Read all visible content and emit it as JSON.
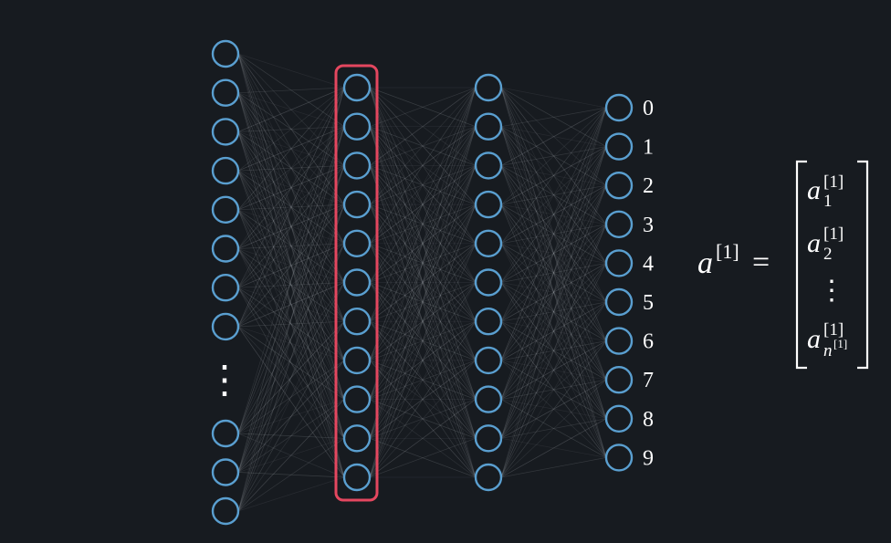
{
  "colors": {
    "background": "#171b20",
    "neuron_stroke": "#5a9fd0",
    "edge": "#9aa0a6",
    "highlight": "#e4475f",
    "text": "#ffffff"
  },
  "network": {
    "layers": [
      {
        "name": "input-layer",
        "top_count": 8,
        "bottom_count": 3,
        "ellipsis": true
      },
      {
        "name": "hidden-layer-1",
        "count": 11,
        "highlighted": true
      },
      {
        "name": "hidden-layer-2",
        "count": 11
      },
      {
        "name": "output-layer",
        "count": 10
      }
    ],
    "output_labels": [
      "0",
      "1",
      "2",
      "3",
      "4",
      "5",
      "6",
      "7",
      "8",
      "9"
    ],
    "ellipsis_glyph": "⋮"
  },
  "equation": {
    "lhs_symbol": "a",
    "lhs_superscript": "[1]",
    "equals": "=",
    "vector_entries": [
      {
        "symbol": "a",
        "sub": "1",
        "sup": "[1]"
      },
      {
        "symbol": "a",
        "sub": "2",
        "sup": "[1]"
      },
      {
        "symbol": "a",
        "sub_base": "n",
        "sub_sup": "[1]",
        "sup": "[1]"
      }
    ],
    "vector_ellipsis": "⋮"
  }
}
